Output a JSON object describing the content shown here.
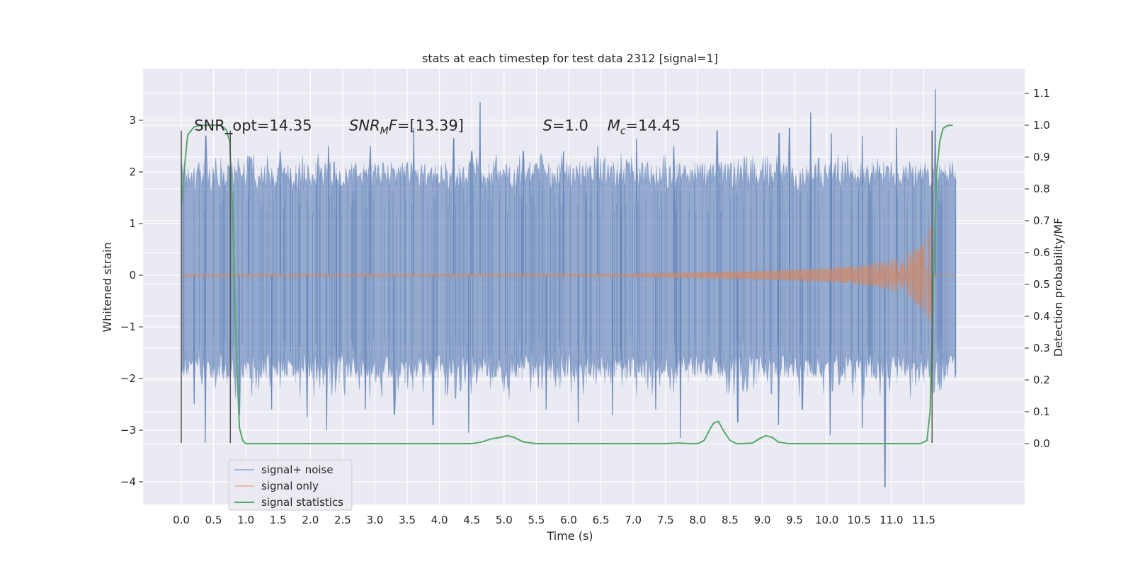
{
  "chart_data": {
    "type": "line",
    "title": "stats at each timestep for test data 2312 [signal=1]",
    "xlabel": "Time (s)",
    "ylabel": "Whitened strain",
    "y2label": "Detection probability/MF",
    "xlim": [
      -0.6,
      12.6
    ],
    "ylim": [
      -4.45,
      3.97
    ],
    "y2lim": [
      -0.2,
      1.2
    ],
    "xticks": [
      0.0,
      0.5,
      1.0,
      1.5,
      2.0,
      2.5,
      3.0,
      3.5,
      4.0,
      4.5,
      5.0,
      5.5,
      6.0,
      6.5,
      7.0,
      7.5,
      8.0,
      8.5,
      9.0,
      9.5,
      10.0,
      10.5,
      11.0,
      11.5
    ],
    "xtick_labels": [
      "0.0",
      "0.5",
      "1.0",
      "1.5",
      "2.0",
      "2.5",
      "3.0",
      "3.5",
      "4.0",
      "4.5",
      "5.0",
      "5.5",
      "6.0",
      "6.5",
      "7.0",
      "7.5",
      "8.0",
      "8.5",
      "9.0",
      "9.5",
      "10.0",
      "10.5",
      "11.0",
      "11.5"
    ],
    "yticks": [
      3,
      2,
      1,
      0,
      -1,
      -2,
      -3,
      -4
    ],
    "ytick_labels": [
      "3",
      "2",
      "1",
      "0",
      "−1",
      "−2",
      "−3",
      "−4"
    ],
    "y2ticks": [
      1.1,
      1.0,
      0.9,
      0.8,
      0.7,
      0.6,
      0.5,
      0.4,
      0.3,
      0.2,
      0.1,
      0.0
    ],
    "y2tick_labels": [
      "1.1",
      "1.0",
      "0.9",
      "0.8",
      "0.7",
      "0.6",
      "0.5",
      "0.4",
      "0.3",
      "0.2",
      "0.1",
      "0.0"
    ],
    "grid": true,
    "background": "#eaeaf2",
    "legend_position": "bottom-left",
    "annotations": [
      {
        "label": "SNR_opt=14.35",
        "x": 0.2,
        "y": 2.9
      },
      {
        "label": "SNR_MF=[13.39]",
        "x": 2.6,
        "y": 2.9
      },
      {
        "label": "S=1.0",
        "x": 5.6,
        "y": 2.9
      },
      {
        "label": "M_c=14.45",
        "x": 6.6,
        "y": 2.9
      }
    ],
    "vlines": [
      0.0,
      0.76,
      11.63
    ],
    "vline_range": [
      -3.25,
      2.8
    ],
    "series": [
      {
        "name": "signal+ noise",
        "color": "#4c72b0",
        "opacity": 0.5,
        "x_range": [
          0.0,
          12.0
        ],
        "core_band": [
          -1.45,
          1.55
        ],
        "peak_x": [
          0.38,
          1.05,
          1.53,
          2.28,
          2.93,
          3.6,
          4.22,
          4.5,
          4.63,
          5.3,
          5.92,
          6.45,
          7.05,
          7.63,
          8.3,
          9.26,
          9.42,
          9.75,
          10.07,
          10.55,
          11.08,
          11.68
        ],
        "peak_y": [
          2.7,
          2.3,
          2.4,
          2.5,
          2.5,
          2.85,
          2.65,
          2.4,
          3.35,
          2.4,
          2.4,
          2.5,
          2.65,
          2.5,
          2.8,
          2.75,
          2.85,
          3.15,
          2.75,
          2.7,
          2.85,
          3.6
        ],
        "trough_x": [
          0.2,
          0.37,
          0.9,
          1.4,
          1.95,
          2.25,
          2.85,
          3.3,
          3.9,
          4.45,
          5.65,
          6.15,
          6.68,
          7.35,
          7.73,
          8.62,
          9.25,
          9.62,
          10.05,
          10.55,
          10.9
        ],
        "trough_y": [
          -2.5,
          -3.25,
          -2.7,
          -2.6,
          -2.75,
          -3.0,
          -2.6,
          -2.7,
          -2.9,
          -3.05,
          -2.6,
          -2.85,
          -2.7,
          -2.6,
          -3.15,
          -2.85,
          -2.9,
          -2.6,
          -3.1,
          -2.95,
          -4.1
        ]
      },
      {
        "name": "signal only",
        "color": "#dd8452",
        "opacity": 0.5,
        "x_range": [
          0.0,
          12.0
        ],
        "merger_x": 11.63,
        "amplitude_env_x": [
          7.0,
          8.0,
          9.0,
          10.0,
          10.5,
          11.0,
          11.3,
          11.5,
          11.6,
          11.7
        ],
        "amplitude_env_y": [
          0.03,
          0.06,
          0.09,
          0.14,
          0.19,
          0.3,
          0.46,
          0.72,
          1.0,
          0.0
        ]
      },
      {
        "name": "signal statistics",
        "color": "#55a868",
        "opacity": 1.0,
        "axis": "right",
        "x": [
          0.0,
          0.05,
          0.1,
          0.2,
          0.3,
          0.4,
          0.5,
          0.6,
          0.65,
          0.7,
          0.75,
          0.8,
          0.85,
          0.9,
          0.95,
          1.0,
          2.0,
          3.0,
          4.0,
          4.5,
          4.65,
          4.8,
          4.95,
          5.05,
          5.15,
          5.3,
          5.5,
          6.0,
          6.5,
          7.0,
          7.5,
          7.7,
          7.85,
          8.0,
          8.1,
          8.2,
          8.25,
          8.32,
          8.4,
          8.5,
          8.6,
          8.7,
          8.85,
          8.95,
          9.05,
          9.15,
          9.25,
          9.4,
          9.6,
          10.0,
          10.5,
          11.0,
          11.3,
          11.45,
          11.55,
          11.6,
          11.65,
          11.7,
          11.75,
          11.8,
          11.85,
          11.9,
          11.95
        ],
        "y": [
          0.75,
          0.87,
          0.97,
          0.995,
          1.0,
          1.0,
          1.0,
          1.0,
          0.995,
          0.985,
          0.95,
          0.7,
          0.3,
          0.05,
          0.01,
          0.0,
          0.0,
          0.0,
          0.0,
          0.0,
          0.005,
          0.015,
          0.02,
          0.025,
          0.02,
          0.005,
          0.0,
          0.0,
          0.0,
          0.0,
          0.0,
          0.002,
          0.0,
          0.0,
          0.01,
          0.05,
          0.065,
          0.07,
          0.04,
          0.01,
          0.0,
          0.0,
          0.002,
          0.015,
          0.025,
          0.02,
          0.005,
          0.0,
          0.0,
          0.0,
          0.0,
          0.0,
          0.0,
          0.0,
          0.01,
          0.1,
          0.5,
          0.85,
          0.95,
          0.99,
          0.997,
          1.0,
          1.0
        ]
      }
    ]
  }
}
